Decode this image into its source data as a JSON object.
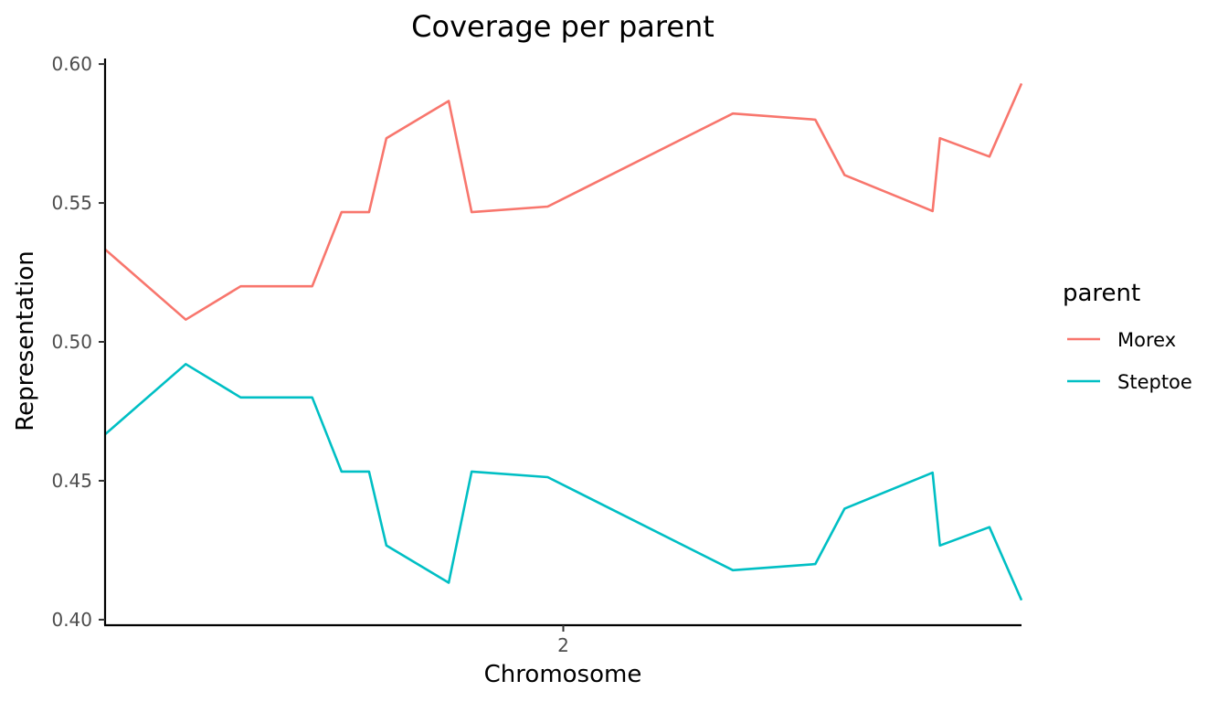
{
  "chart_data": {
    "type": "line",
    "title": "Coverage per parent",
    "xlabel": "Chromosome",
    "ylabel": "Representation",
    "x_tick_labels": [
      {
        "x": 50.0,
        "label": "2"
      }
    ],
    "xlim": [
      0,
      100
    ],
    "ylim": [
      0.398,
      0.602
    ],
    "y_ticks": [
      "0.40",
      "0.45",
      "0.50",
      "0.55",
      "0.60"
    ],
    "grid": false,
    "legend": {
      "title": "parent",
      "placement": "right"
    },
    "series": [
      {
        "name": "Morex",
        "color": "#F8766D",
        "x": [
          0.0,
          8.8,
          14.8,
          22.6,
          25.8,
          28.8,
          30.7,
          37.5,
          40.0,
          48.3,
          68.5,
          77.5,
          80.7,
          90.3,
          91.1,
          96.5,
          100.0
        ],
        "y": [
          0.5333,
          0.508,
          0.52,
          0.52,
          0.5467,
          0.5467,
          0.5733,
          0.5867,
          0.5467,
          0.5487,
          0.5822,
          0.58,
          0.56,
          0.5471,
          0.5733,
          0.5667,
          0.593
        ]
      },
      {
        "name": "Steptoe",
        "color": "#00BFC4",
        "x": [
          0.0,
          8.8,
          14.8,
          22.6,
          25.8,
          28.8,
          30.7,
          37.5,
          40.0,
          48.3,
          68.5,
          77.5,
          80.7,
          90.3,
          91.1,
          96.5,
          100.0
        ],
        "y": [
          0.4667,
          0.492,
          0.48,
          0.48,
          0.4533,
          0.4533,
          0.4267,
          0.4133,
          0.4533,
          0.4513,
          0.4178,
          0.42,
          0.44,
          0.4529,
          0.4267,
          0.4333,
          0.407
        ]
      }
    ]
  }
}
